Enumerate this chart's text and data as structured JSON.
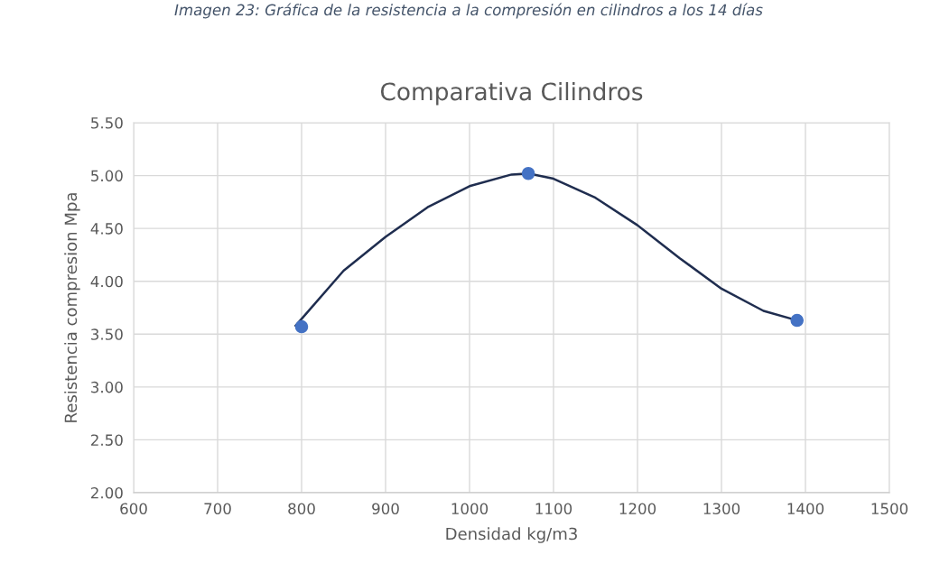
{
  "chart_data": {
    "type": "scatter",
    "title": "Comparativa Cilindros",
    "xlabel": "Densidad kg/m3",
    "ylabel": "Resistencia compresion Mpa",
    "annotations": [
      "Imagen 23: Gráfica de la resistencia a la compresión en cilindros a los 14 días"
    ],
    "series": [
      {
        "color": "#4472c4",
        "marker": "circle",
        "x": [
          800,
          1070,
          1390
        ],
        "values": [
          3.57,
          5.02,
          3.63
        ]
      },
      {
        "type": "line",
        "color": "#1f2d4f",
        "marker": "none",
        "x": [
          793,
          850,
          900,
          950,
          1000,
          1050,
          1070,
          1100,
          1150,
          1200,
          1250,
          1300,
          1350,
          1390
        ],
        "values": [
          3.58,
          4.1,
          4.42,
          4.7,
          4.9,
          5.01,
          5.02,
          4.97,
          4.79,
          4.53,
          4.22,
          3.93,
          3.72,
          3.63
        ]
      }
    ],
    "xlim": [
      600,
      1500
    ],
    "xticks": [
      600,
      700,
      800,
      900,
      1000,
      1100,
      1200,
      1300,
      1400,
      1500
    ],
    "ylim": [
      2.0,
      5.5
    ],
    "yticks": [
      {
        "value": 2.0,
        "label": "2.00"
      },
      {
        "value": 2.5,
        "label": "2.50"
      },
      {
        "value": 3.0,
        "label": "3.00"
      },
      {
        "value": 3.5,
        "label": "3.50"
      },
      {
        "value": 4.0,
        "label": "4.00"
      },
      {
        "value": 4.5,
        "label": "4.50"
      },
      {
        "value": 5.0,
        "label": "5.00"
      },
      {
        "value": 5.5,
        "label": "5.50"
      }
    ],
    "grid": true
  }
}
